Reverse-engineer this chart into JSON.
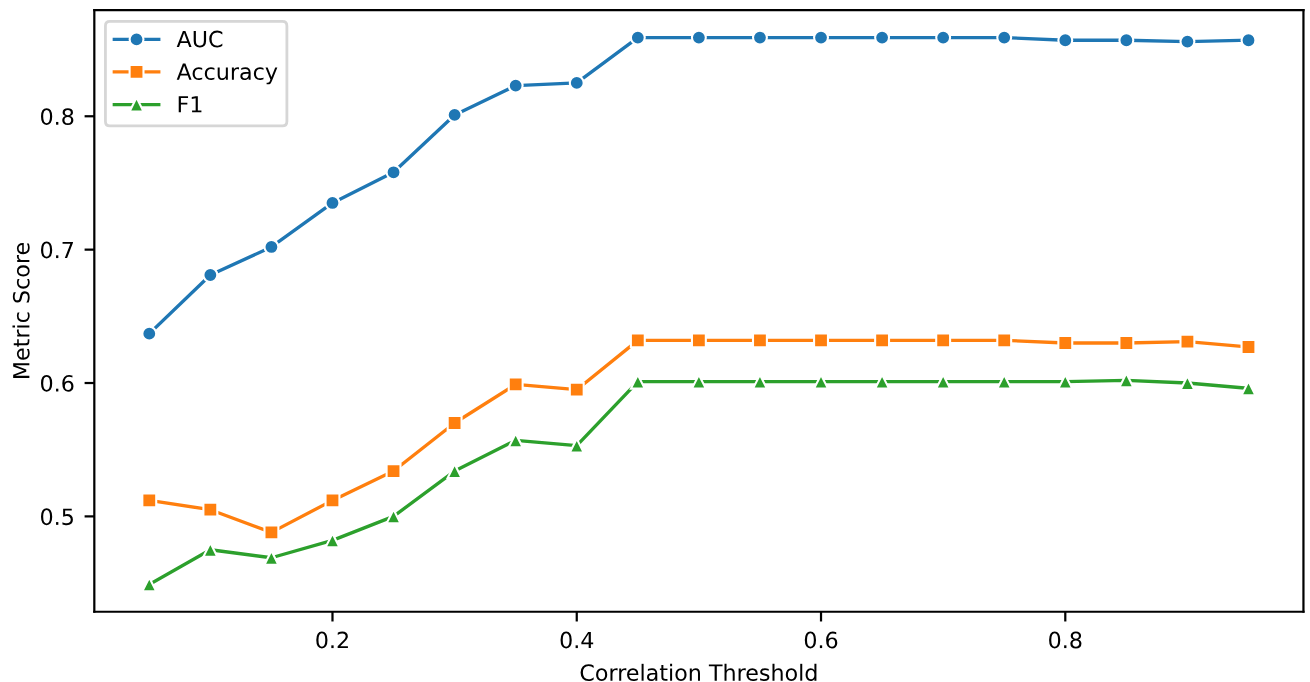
{
  "chart_data": {
    "type": "line",
    "xlabel": "Correlation Threshold",
    "ylabel": "Metric Score",
    "x": [
      0.05,
      0.1,
      0.15,
      0.2,
      0.25,
      0.3,
      0.35,
      0.4,
      0.45,
      0.5,
      0.55,
      0.6,
      0.65,
      0.7,
      0.75,
      0.8,
      0.85,
      0.9,
      0.95
    ],
    "series": [
      {
        "name": "AUC",
        "color": "#1f77b4",
        "marker": "circle",
        "values": [
          0.637,
          0.681,
          0.702,
          0.735,
          0.758,
          0.801,
          0.823,
          0.825,
          0.859,
          0.859,
          0.859,
          0.859,
          0.859,
          0.859,
          0.859,
          0.857,
          0.857,
          0.856,
          0.857
        ]
      },
      {
        "name": "Accuracy",
        "color": "#ff7f0e",
        "marker": "square",
        "values": [
          0.512,
          0.505,
          0.488,
          0.512,
          0.534,
          0.57,
          0.599,
          0.595,
          0.632,
          0.632,
          0.632,
          0.632,
          0.632,
          0.632,
          0.632,
          0.63,
          0.63,
          0.631,
          0.627
        ]
      },
      {
        "name": "F1",
        "color": "#2ca02c",
        "marker": "triangle",
        "values": [
          0.449,
          0.475,
          0.469,
          0.482,
          0.5,
          0.534,
          0.557,
          0.553,
          0.601,
          0.601,
          0.601,
          0.601,
          0.601,
          0.601,
          0.601,
          0.601,
          0.602,
          0.6,
          0.596
        ]
      }
    ],
    "xlim": [
      0.005,
      0.995
    ],
    "ylim": [
      0.4285,
      0.8795
    ],
    "xticks": [
      0.2,
      0.4,
      0.6,
      0.8
    ],
    "yticks": [
      0.5,
      0.6,
      0.7,
      0.8
    ],
    "grid": false,
    "legend": "top left",
    "line_style": "solid"
  }
}
